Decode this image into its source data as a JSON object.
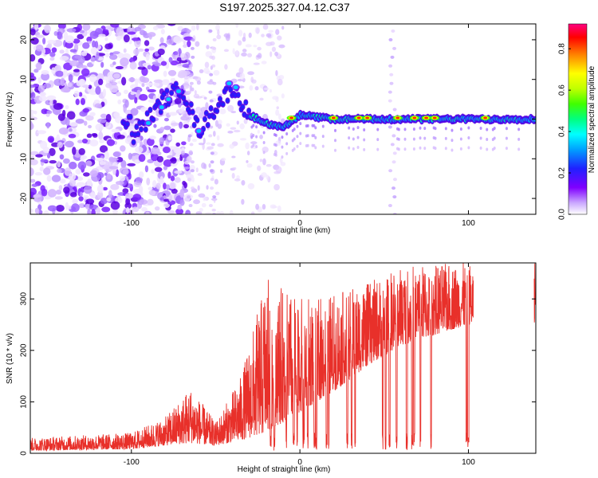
{
  "title": "S197.2025.327.04.12.C37",
  "chart_data": [
    {
      "type": "heatmap",
      "name": "spectrogram",
      "xlabel": "Height of straight line (km)",
      "ylabel": "Frequency (Hz)",
      "xlim": [
        -160,
        140
      ],
      "ylim": [
        -24,
        24
      ],
      "xticks": [
        -100,
        0,
        100
      ],
      "yticks": [
        20,
        10,
        0,
        -10,
        -20
      ],
      "colorbar": {
        "label": "Normalized spectral amplitude",
        "range": [
          0,
          0.92
        ],
        "ticks": [
          0.0,
          0.2,
          0.4,
          0.6,
          0.8
        ]
      },
      "ridge": [
        {
          "x": -100,
          "f": -5
        },
        {
          "x": -90,
          "f": 0
        },
        {
          "x": -80,
          "f": 5
        },
        {
          "x": -70,
          "f": 8
        },
        {
          "x": -60,
          "f": -3
        },
        {
          "x": -50,
          "f": 3
        },
        {
          "x": -40,
          "f": 8
        },
        {
          "x": -30,
          "f": 1
        },
        {
          "x": -20,
          "f": -1
        },
        {
          "x": -10,
          "f": -2
        },
        {
          "x": 0,
          "f": 1
        },
        {
          "x": 20,
          "f": 0
        },
        {
          "x": 140,
          "f": 0
        }
      ],
      "hotspots_km": [
        -5,
        20,
        35,
        40,
        58,
        68,
        75,
        80,
        110
      ]
    },
    {
      "type": "line",
      "name": "snr",
      "xlabel": "Height of straight line (km)",
      "ylabel": "SNR (10 * v/v)",
      "xlim": [
        -160,
        140
      ],
      "ylim": [
        0,
        370
      ],
      "xticks": [
        -100,
        0,
        100
      ],
      "yticks": [
        0,
        100,
        200,
        300
      ],
      "series": [
        {
          "name": "SNR",
          "color": "#e8302a",
          "envelope": [
            {
              "x": -160,
              "base": 5,
              "peak": 30
            },
            {
              "x": -100,
              "base": 8,
              "peak": 40
            },
            {
              "x": -80,
              "base": 15,
              "peak": 70
            },
            {
              "x": -65,
              "base": 20,
              "peak": 130
            },
            {
              "x": -50,
              "base": 15,
              "peak": 60
            },
            {
              "x": -35,
              "base": 25,
              "peak": 150
            },
            {
              "x": -20,
              "base": 40,
              "peak": 340
            },
            {
              "x": 0,
              "base": 80,
              "peak": 300
            },
            {
              "x": 20,
              "base": 120,
              "peak": 310
            },
            {
              "x": 40,
              "base": 170,
              "peak": 330
            },
            {
              "x": 60,
              "base": 210,
              "peak": 365
            },
            {
              "x": 100,
              "base": 250,
              "peak": 370
            },
            {
              "x": 140,
              "base": 250,
              "peak": 370
            }
          ]
        }
      ]
    }
  ],
  "colors": {
    "snr_line": "#e8302a",
    "frame": "#000000"
  }
}
